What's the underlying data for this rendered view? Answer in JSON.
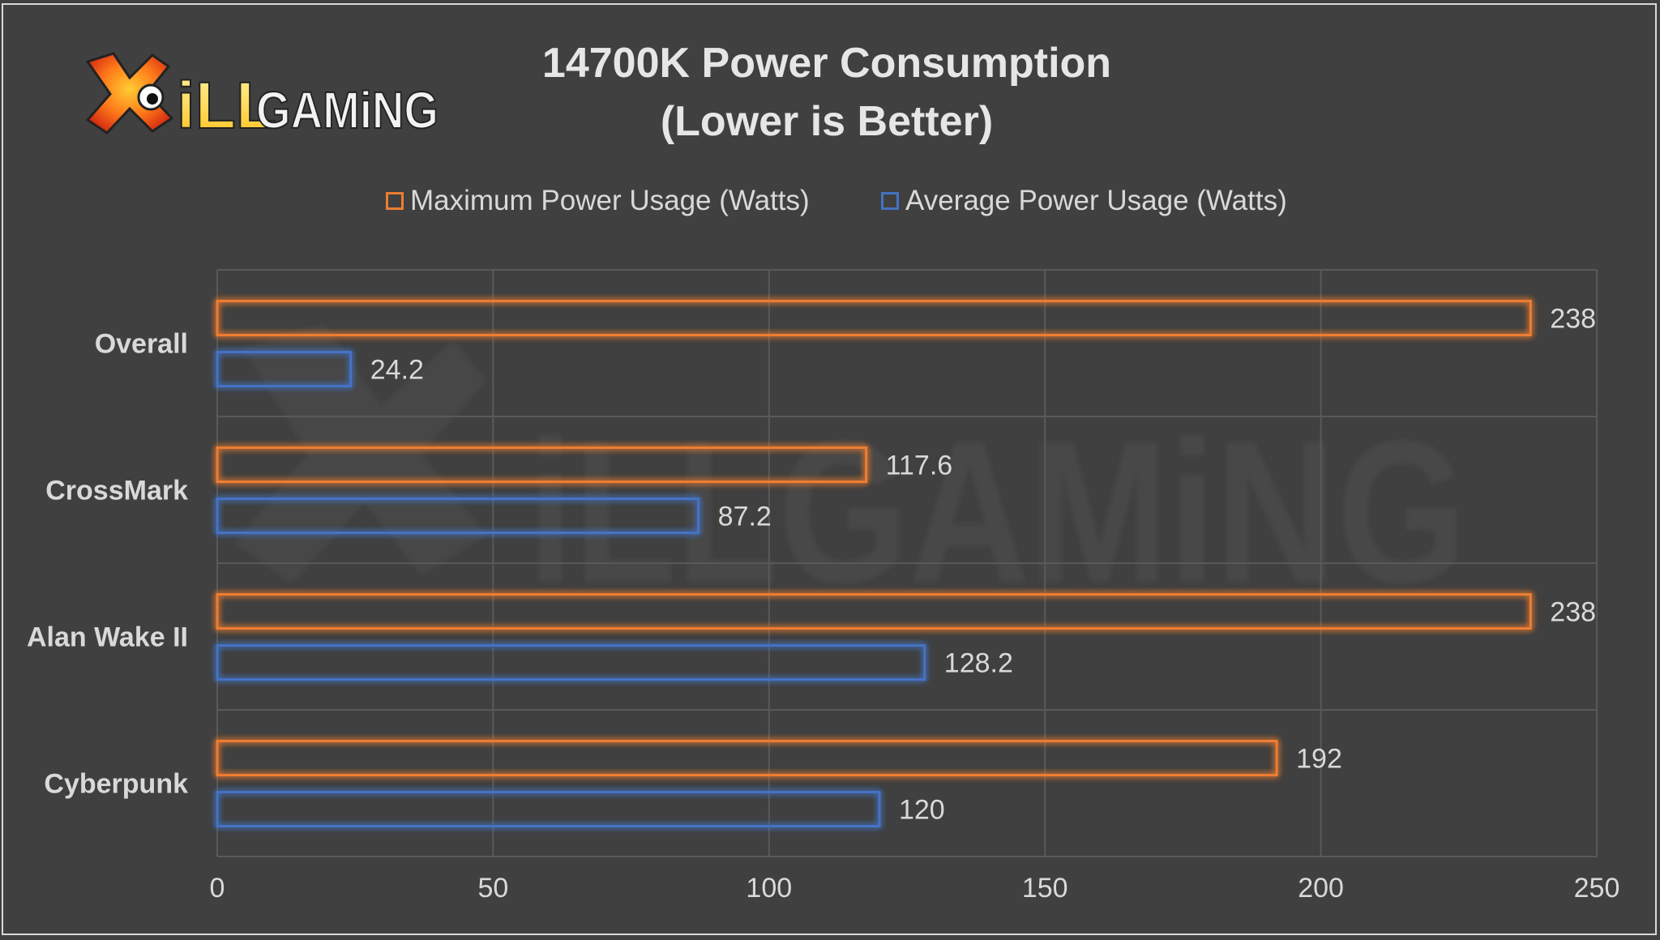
{
  "chart_data": {
    "type": "bar",
    "orientation": "horizontal",
    "title_lines": [
      "14700K Power Consumption",
      "(Lower is Better)"
    ],
    "categories": [
      "Overall",
      "CrossMark",
      "Alan Wake II",
      "Cyberpunk"
    ],
    "series": [
      {
        "name": "Maximum Power Usage (Watts)",
        "color": "#ED7D31",
        "values": [
          238,
          117.6,
          238,
          192
        ],
        "labels": [
          "238",
          "117.6",
          "238",
          "192"
        ]
      },
      {
        "name": "Average Power Usage (Watts)",
        "color": "#4472C4",
        "values": [
          24.2,
          87.2,
          128.2,
          120
        ],
        "labels": [
          "24.2",
          "87.2",
          "128.2",
          "120"
        ]
      }
    ],
    "xlim": [
      0,
      250
    ],
    "xticks": [
      "0",
      "50",
      "100",
      "150",
      "200",
      "250"
    ],
    "xlabel": "",
    "ylabel": "",
    "grid": true,
    "legend_position": "top",
    "bar_style": "outlined-glow"
  },
  "logo": {
    "text": "iLLGAMiNG",
    "icon": "x-eye-icon"
  },
  "colors": {
    "background": "#404040",
    "grid": "#595959",
    "text": "#d9d9d9",
    "title": "#e6e6e6"
  }
}
